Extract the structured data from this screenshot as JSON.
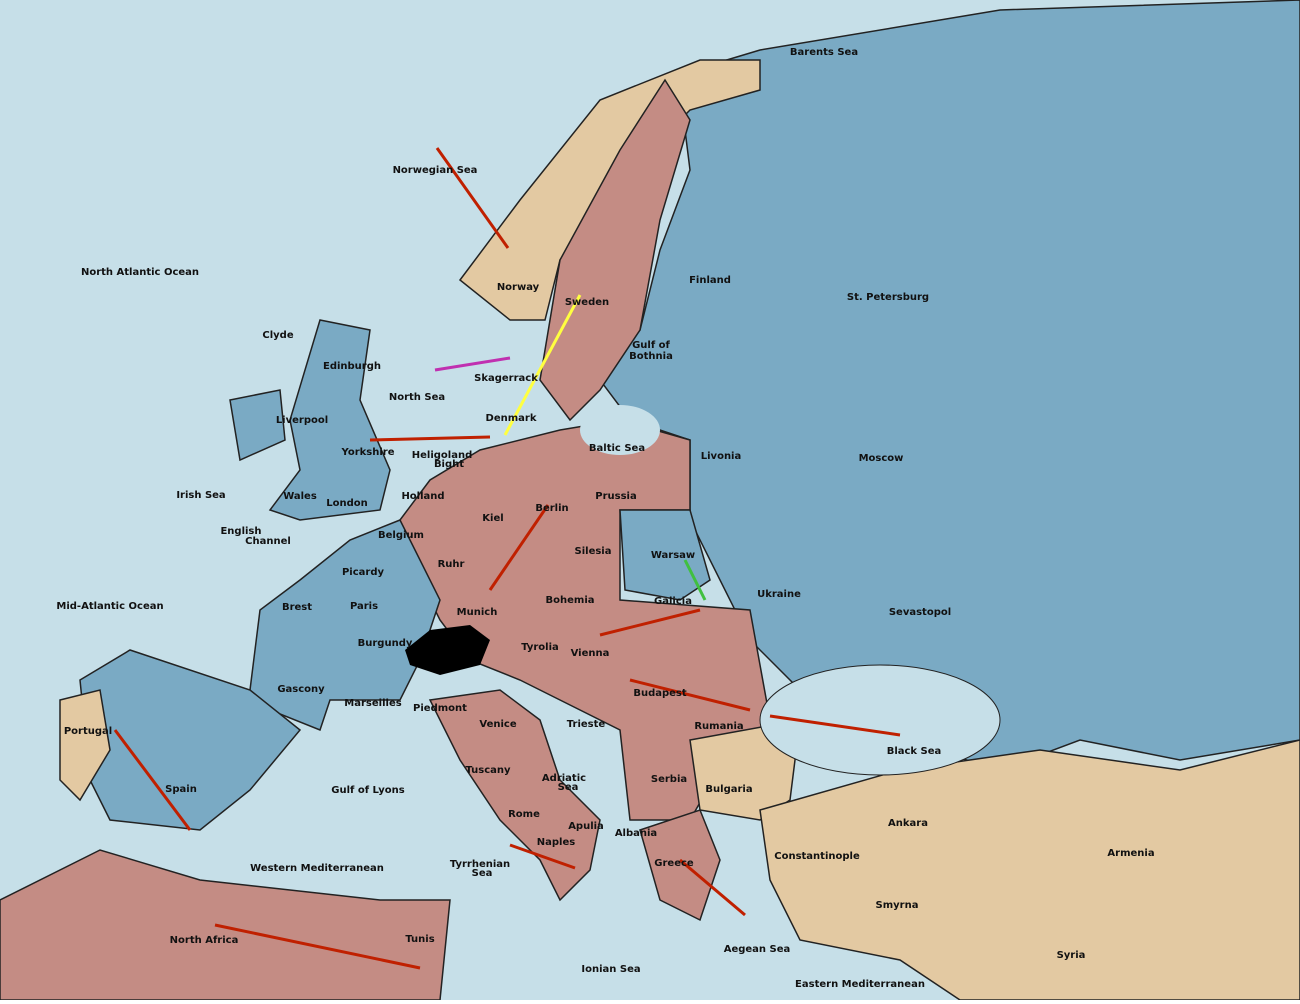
{
  "labels": [
    "Barents Sea",
    "Norwegian Sea",
    "North Atlantic Ocean",
    "Norway",
    "Sweden",
    "Finland",
    "St. Petersburg",
    "Clyde",
    "Edinburgh",
    "Gulf of",
    "Bothnia",
    "Skagerrack",
    "North Sea",
    "Liverpool",
    "Denmark",
    "Baltic Sea",
    "Yorkshire",
    "Heligoland",
    "Bight",
    "Livonia",
    "Moscow",
    "Irish Sea",
    "Wales",
    "London",
    "Holland",
    "Prussia",
    "Berlin",
    "Kiel",
    "English",
    "Channel",
    "Belgium",
    "Silesia",
    "Warsaw",
    "Ruhr",
    "Picardy",
    "Ukraine",
    "Mid-Atlantic Ocean",
    "Brest",
    "Paris",
    "Bohemia",
    "Galicia",
    "Munich",
    "Sevastopol",
    "Burgundy",
    "Tyrolia",
    "Vienna",
    "Gascony",
    "Budapest",
    "Marseilles",
    "Piedmont",
    "Venice",
    "Rumania",
    "Trieste",
    "Portugal",
    "Black Sea",
    "Spain",
    "Gulf of Lyons",
    "Tuscany",
    "Serbia",
    "Adriatic",
    "Sea",
    "Bulgaria",
    "Rome",
    "Apulia",
    "Albania",
    "Ankara",
    "Armenia",
    "Constantinople",
    "Naples",
    "Greece",
    "Tyrrhenian",
    "Sea",
    "Western Mediterranean",
    "Smyrna",
    "North Africa",
    "Tunis",
    "Aegean Sea",
    "Syria",
    "Ionian Sea",
    "Eastern Mediterranean"
  ]
}
